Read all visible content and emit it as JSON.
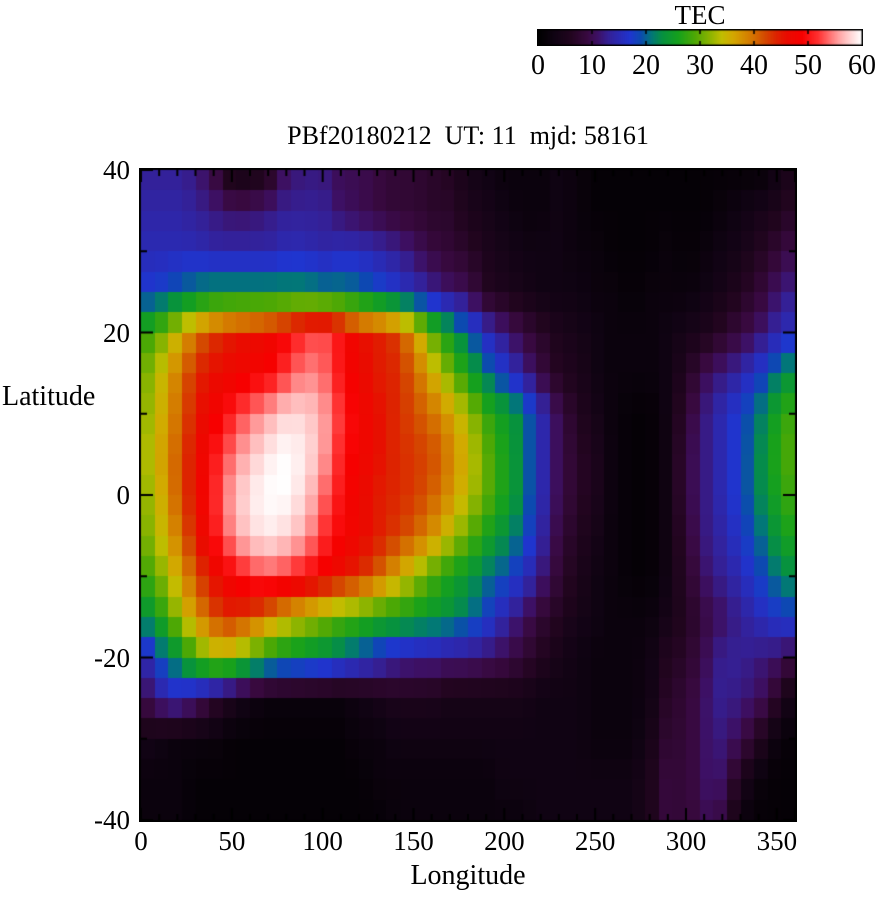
{
  "colorbar": {
    "title": "TEC",
    "tick_labels": [
      "0",
      "10",
      "20",
      "30",
      "40",
      "50",
      "60"
    ],
    "tick_values": [
      0,
      10,
      20,
      30,
      40,
      50,
      60
    ],
    "min": 0,
    "max": 60
  },
  "plot": {
    "title": "PBf20180212  UT: 11  mjd: 58161",
    "x_label": "Longitude",
    "y_label": "Latitude",
    "x_tick_labels": [
      "0",
      "50",
      "100",
      "150",
      "200",
      "250",
      "300",
      "350"
    ],
    "x_tick_values": [
      0,
      50,
      100,
      150,
      200,
      250,
      300,
      350
    ],
    "y_tick_labels": [
      "40",
      "20",
      "0",
      "-20",
      "-40"
    ],
    "y_tick_values": [
      40,
      20,
      0,
      -20,
      -40
    ],
    "x_minor_step": 10,
    "y_minor_step": 10,
    "border_color": "#000000",
    "background": "#ffffff"
  },
  "chart_data": {
    "type": "heatmap",
    "title": "PBf20180212  UT: 11  mjd: 58161",
    "xlabel": "Longitude",
    "ylabel": "Latitude",
    "colorbar_label": "TEC",
    "xlim": [
      0,
      360
    ],
    "ylim": [
      -40,
      40
    ],
    "zlim": [
      0,
      60
    ],
    "lon": [
      0,
      10,
      20,
      30,
      40,
      50,
      60,
      70,
      80,
      90,
      100,
      110,
      120,
      130,
      140,
      150,
      160,
      170,
      180,
      190,
      200,
      210,
      220,
      230,
      240,
      250,
      260,
      270,
      280,
      290,
      300,
      310,
      320,
      330,
      340,
      350,
      360
    ],
    "lat": [
      40,
      35,
      30,
      25,
      20,
      15,
      10,
      5,
      0,
      -5,
      -10,
      -15,
      -20,
      -25,
      -30,
      -35,
      -40
    ],
    "values": [
      [
        13,
        13,
        13,
        12,
        9,
        3,
        3,
        5,
        11,
        12,
        12,
        10,
        10,
        9,
        8,
        8,
        7,
        6,
        4,
        3,
        2,
        2,
        2,
        3,
        2,
        1,
        1,
        1,
        1,
        1,
        1,
        1,
        1,
        1,
        1,
        3,
        5
      ],
      [
        14,
        14,
        14,
        13,
        12,
        11,
        11,
        12,
        13,
        13,
        13,
        11,
        10,
        9,
        8,
        8,
        7,
        7,
        5,
        4,
        3,
        2,
        2,
        3,
        2,
        1,
        1,
        1,
        1,
        1,
        1,
        1,
        2,
        3,
        4,
        5,
        7
      ],
      [
        15,
        15,
        15,
        15,
        14,
        14,
        14,
        14,
        15,
        15,
        14,
        15,
        15,
        14,
        13,
        11,
        9,
        8,
        7,
        5,
        4,
        3,
        3,
        3,
        2,
        2,
        1,
        1,
        1,
        2,
        1,
        2,
        3,
        4,
        6,
        8,
        10
      ],
      [
        17,
        18,
        20,
        22,
        23,
        23,
        23,
        23,
        23,
        23,
        22,
        22,
        21,
        19,
        17,
        15,
        13,
        11,
        10,
        6,
        5,
        4,
        3,
        3,
        3,
        2,
        2,
        1,
        2,
        2,
        2,
        3,
        4,
        6,
        8,
        11,
        13
      ],
      [
        27,
        30,
        35,
        40,
        43,
        45,
        46,
        47,
        49,
        52,
        53,
        50,
        46,
        45,
        43,
        38,
        30,
        25,
        20,
        15,
        12,
        9,
        7,
        5,
        4,
        3,
        2,
        2,
        2,
        3,
        4,
        5,
        7,
        9,
        11,
        14,
        16
      ],
      [
        30,
        34,
        39,
        44,
        46,
        47,
        48,
        49,
        52,
        55,
        54,
        50,
        47,
        45,
        44,
        41,
        36,
        31,
        26,
        21,
        17,
        13,
        9,
        6,
        5,
        3,
        2,
        2,
        2,
        3,
        6,
        10,
        12,
        14,
        17,
        21,
        24
      ],
      [
        31,
        35,
        40,
        45,
        48,
        51,
        54,
        56,
        58,
        58,
        56,
        52,
        48,
        46,
        44,
        42,
        40,
        37,
        33,
        28,
        25,
        22,
        15,
        10,
        6,
        4,
        2,
        1,
        1,
        3,
        8,
        12,
        15,
        18,
        21,
        26,
        29
      ],
      [
        32,
        36,
        41,
        46,
        50,
        54,
        57,
        59,
        60,
        59,
        56,
        51,
        48,
        46,
        44,
        43,
        42,
        39,
        35,
        30,
        26,
        22,
        15,
        10,
        7,
        5,
        2,
        1,
        1,
        3,
        9,
        12,
        15,
        18,
        22,
        27,
        30
      ],
      [
        31,
        35,
        41,
        46,
        51,
        56,
        59,
        60,
        60,
        58,
        54,
        50,
        47,
        45,
        44,
        43,
        41,
        38,
        34,
        30,
        26,
        22,
        15,
        10,
        7,
        5,
        2,
        1,
        1,
        3,
        9,
        12,
        15,
        18,
        22,
        26,
        29
      ],
      [
        30,
        34,
        39,
        45,
        50,
        55,
        58,
        59,
        58,
        56,
        52,
        49,
        47,
        45,
        43,
        41,
        38,
        34,
        30,
        26,
        23,
        20,
        14,
        9,
        6,
        4,
        2,
        1,
        1,
        3,
        8,
        12,
        14,
        17,
        20,
        24,
        27
      ],
      [
        27,
        31,
        36,
        42,
        46,
        49,
        52,
        53,
        52,
        50,
        48,
        46,
        44,
        41,
        37,
        33,
        29,
        26,
        24,
        21,
        19,
        16,
        12,
        8,
        5,
        3,
        2,
        1,
        1,
        3,
        7,
        11,
        13,
        15,
        18,
        21,
        23
      ],
      [
        22,
        26,
        32,
        38,
        42,
        44,
        42,
        39,
        36,
        34,
        32,
        30,
        29,
        27,
        26,
        25,
        24,
        23,
        21,
        18,
        14,
        11,
        8,
        6,
        4,
        3,
        2,
        2,
        2,
        4,
        6,
        9,
        11,
        13,
        15,
        17,
        18
      ],
      [
        13,
        19,
        23,
        29,
        33,
        33,
        29,
        26,
        24,
        23,
        22,
        20,
        18,
        16,
        14,
        13,
        13,
        12,
        12,
        11,
        10,
        8,
        6,
        4,
        3,
        2,
        2,
        2,
        3,
        6,
        7,
        10,
        13,
        13,
        12,
        11,
        9
      ],
      [
        9,
        13,
        15,
        12,
        8,
        5,
        3,
        2,
        2,
        2,
        2,
        2,
        3,
        4,
        5,
        5,
        5,
        4,
        4,
        4,
        4,
        4,
        3,
        3,
        3,
        2,
        2,
        2,
        3,
        7,
        8,
        11,
        13,
        12,
        11,
        7,
        2
      ],
      [
        4,
        3,
        2,
        2,
        2,
        1,
        1,
        1,
        1,
        1,
        1,
        1,
        2,
        2,
        3,
        3,
        3,
        3,
        3,
        3,
        3,
        3,
        3,
        3,
        3,
        2,
        2,
        2,
        4,
        8,
        8,
        11,
        12,
        10,
        6,
        2,
        1
      ],
      [
        2,
        2,
        2,
        1,
        1,
        1,
        1,
        1,
        1,
        1,
        1,
        1,
        1,
        2,
        2,
        2,
        2,
        2,
        2,
        2,
        3,
        3,
        3,
        3,
        3,
        3,
        3,
        3,
        5,
        9,
        8,
        11,
        11,
        5,
        2,
        1,
        1
      ],
      [
        2,
        2,
        2,
        1,
        1,
        1,
        1,
        1,
        1,
        1,
        1,
        1,
        1,
        1,
        2,
        2,
        2,
        2,
        2,
        2,
        2,
        2,
        3,
        3,
        3,
        3,
        3,
        3,
        5,
        9,
        8,
        10,
        9,
        2,
        1,
        1,
        1
      ]
    ],
    "colormap_stops": [
      [
        0,
        "#000000"
      ],
      [
        3,
        "#100313"
      ],
      [
        6,
        "#22051f"
      ],
      [
        9,
        "#38093f"
      ],
      [
        11,
        "#3d1064"
      ],
      [
        13,
        "#342096"
      ],
      [
        15,
        "#2a2ab4"
      ],
      [
        17,
        "#1f35cf"
      ],
      [
        19,
        "#0c4ab0"
      ],
      [
        21,
        "#027778"
      ],
      [
        23,
        "#069140"
      ],
      [
        26,
        "#16a11c"
      ],
      [
        29,
        "#4ca805"
      ],
      [
        32,
        "#8fb400"
      ],
      [
        34,
        "#c0be00"
      ],
      [
        36,
        "#d2aa00"
      ],
      [
        38,
        "#d48e00"
      ],
      [
        40,
        "#d47000"
      ],
      [
        42,
        "#d44a00"
      ],
      [
        44,
        "#dc2600"
      ],
      [
        46,
        "#e90c00"
      ],
      [
        49,
        "#f70000"
      ],
      [
        52,
        "#ff3232"
      ],
      [
        54,
        "#ff6e6e"
      ],
      [
        56,
        "#ffa8a8"
      ],
      [
        58,
        "#ffd6d6"
      ],
      [
        60,
        "#ffffff"
      ]
    ],
    "legend_position": "top-right-colorbar",
    "grid": false
  }
}
